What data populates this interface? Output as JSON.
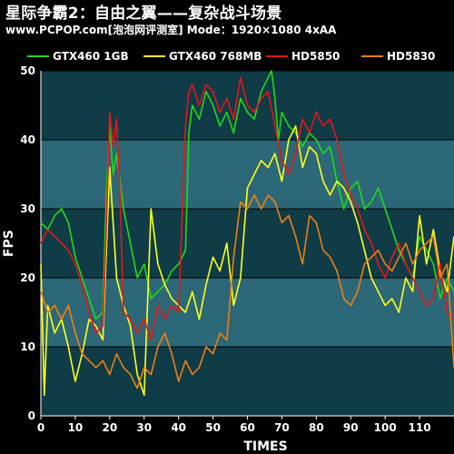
{
  "title": "星际争霸2：自由之翼——复杂战斗场景",
  "subtitle": "www.PCPOP.com[泡泡网评测室] Mode：1920×1080 4xAA",
  "chart_data": {
    "type": "line",
    "xlabel": "TIMES",
    "ylabel": "FPS",
    "xlim": [
      0,
      120
    ],
    "ylim": [
      0,
      50
    ],
    "xticks": [
      0,
      10,
      20,
      30,
      40,
      50,
      60,
      70,
      80,
      90,
      100,
      110
    ],
    "yticks": [
      0,
      10,
      20,
      30,
      40,
      50
    ],
    "legend_position": "top",
    "background": "#0f3c46",
    "band_color": "#2c6877",
    "series": [
      {
        "name": "GTX460 1GB",
        "color": "#22d81a",
        "x": [
          0,
          2,
          4,
          6,
          8,
          10,
          12,
          14,
          16,
          18,
          19,
          20,
          21,
          22,
          24,
          26,
          28,
          30,
          32,
          34,
          36,
          38,
          40,
          42,
          43,
          44,
          45,
          46,
          48,
          50,
          52,
          54,
          56,
          58,
          60,
          62,
          64,
          66,
          67,
          68,
          69,
          70,
          72,
          74,
          76,
          78,
          80,
          82,
          84,
          86,
          88,
          90,
          92,
          94,
          96,
          98,
          100,
          102,
          104,
          106,
          108,
          110,
          112,
          114,
          116,
          118,
          120
        ],
        "values": [
          28,
          27,
          29,
          30,
          28,
          23,
          20,
          17,
          14,
          15,
          32,
          42,
          35,
          38,
          30,
          25,
          20,
          22,
          17,
          18,
          19,
          21,
          22,
          24,
          41,
          45,
          44,
          43,
          47,
          45,
          42,
          44,
          41,
          46,
          44,
          43,
          47,
          49,
          50,
          46,
          40,
          44,
          42,
          41,
          39,
          41,
          40,
          38,
          39,
          34,
          30,
          33,
          34,
          30,
          31,
          33,
          30,
          27,
          24,
          22,
          20,
          26,
          24,
          22,
          17,
          20,
          18
        ]
      },
      {
        "name": "GTX460 768MB",
        "color": "#ffff1a",
        "x": [
          0,
          1,
          2,
          4,
          6,
          8,
          10,
          12,
          14,
          16,
          18,
          20,
          22,
          24,
          26,
          28,
          30,
          32,
          34,
          36,
          38,
          40,
          42,
          44,
          46,
          48,
          50,
          52,
          54,
          56,
          58,
          60,
          62,
          64,
          66,
          68,
          70,
          72,
          74,
          76,
          78,
          80,
          82,
          84,
          86,
          88,
          90,
          92,
          94,
          96,
          98,
          100,
          102,
          104,
          106,
          108,
          110,
          112,
          114,
          116,
          118,
          120
        ],
        "values": [
          22,
          3,
          16,
          12,
          14,
          10,
          5,
          9,
          14,
          13,
          11,
          36,
          20,
          16,
          13,
          6,
          3,
          30,
          22,
          19,
          17,
          16,
          15,
          18,
          14,
          19,
          23,
          21,
          25,
          16,
          20,
          33,
          35,
          37,
          36,
          38,
          34,
          40,
          42,
          36,
          39,
          38,
          34,
          32,
          34,
          33,
          31,
          28,
          24,
          20,
          18,
          16,
          17,
          15,
          20,
          18,
          29,
          22,
          27,
          21,
          18,
          26
        ]
      },
      {
        "name": "HD5850",
        "color": "#e8141a",
        "x": [
          0,
          2,
          4,
          6,
          8,
          10,
          12,
          14,
          16,
          18,
          19,
          20,
          21,
          22,
          23,
          24,
          26,
          28,
          30,
          32,
          34,
          36,
          38,
          40,
          42,
          43,
          44,
          46,
          48,
          50,
          52,
          54,
          56,
          58,
          60,
          62,
          64,
          66,
          68,
          70,
          72,
          74,
          76,
          78,
          80,
          82,
          84,
          86,
          88,
          90,
          92,
          94,
          96,
          98,
          100,
          102,
          104,
          106,
          108,
          110,
          112,
          114,
          116,
          118,
          120
        ],
        "values": [
          25,
          27,
          26,
          25,
          24,
          22,
          19,
          15,
          12,
          13,
          27,
          44,
          39,
          43,
          32,
          15,
          14,
          12,
          14,
          11,
          16,
          14,
          16,
          15,
          42,
          47,
          48,
          45,
          48,
          47,
          44,
          46,
          43,
          49,
          45,
          44,
          46,
          47,
          42,
          37,
          35,
          38,
          43,
          41,
          44,
          42,
          43,
          40,
          35,
          32,
          30,
          27,
          25,
          22,
          20,
          23,
          25,
          22,
          20,
          18,
          16,
          17,
          22,
          15,
          14
        ]
      },
      {
        "name": "HD5830",
        "color": "#f07f12",
        "x": [
          0,
          2,
          4,
          6,
          8,
          10,
          12,
          14,
          16,
          18,
          20,
          22,
          24,
          26,
          28,
          30,
          32,
          34,
          36,
          38,
          40,
          42,
          44,
          46,
          48,
          50,
          52,
          54,
          56,
          58,
          60,
          62,
          64,
          66,
          68,
          70,
          72,
          74,
          76,
          78,
          80,
          82,
          84,
          86,
          88,
          90,
          92,
          94,
          96,
          98,
          100,
          102,
          104,
          106,
          108,
          110,
          112,
          114,
          116,
          118,
          120
        ],
        "values": [
          18,
          15,
          16,
          14,
          16,
          12,
          9,
          8,
          7,
          8,
          6,
          9,
          7,
          6,
          4,
          7,
          6,
          10,
          12,
          9,
          5,
          8,
          6,
          7,
          10,
          9,
          12,
          11,
          23,
          31,
          30,
          32,
          30,
          32,
          31,
          28,
          29,
          26,
          22,
          29,
          28,
          24,
          23,
          21,
          17,
          16,
          18,
          22,
          23,
          24,
          22,
          21,
          23,
          25,
          22,
          24,
          25,
          26,
          20,
          22,
          7
        ]
      }
    ]
  }
}
